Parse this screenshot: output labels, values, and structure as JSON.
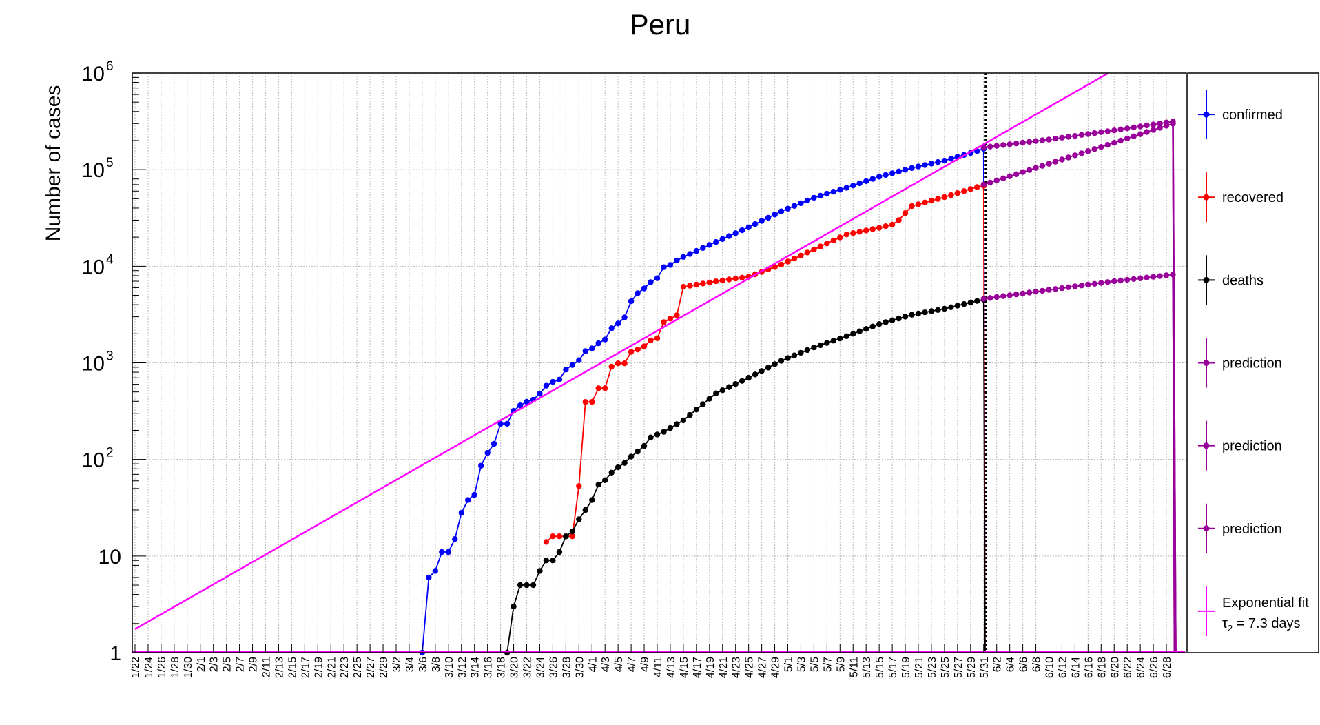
{
  "chart_data": {
    "type": "line",
    "title": "Peru",
    "xlabel": "",
    "ylabel": "Number of cases",
    "y_scale": "log",
    "ylim": [
      1,
      1000000
    ],
    "y_ticks": [
      {
        "value": 1,
        "base": "1",
        "exp": ""
      },
      {
        "value": 10,
        "base": "10",
        "exp": ""
      },
      {
        "value": 100,
        "base": "10",
        "exp": "2"
      },
      {
        "value": 1000,
        "base": "10",
        "exp": "3"
      },
      {
        "value": 10000,
        "base": "10",
        "exp": "4"
      },
      {
        "value": 100000,
        "base": "10",
        "exp": "5"
      },
      {
        "value": 1000000,
        "base": "10",
        "exp": "6"
      }
    ],
    "x_start": "1/22",
    "x_end": "6/30",
    "x_tick_labels": [
      "1/22",
      "1/24",
      "1/26",
      "1/28",
      "1/30",
      "2/1",
      "2/3",
      "2/5",
      "2/7",
      "2/9",
      "2/11",
      "2/13",
      "2/15",
      "2/17",
      "2/19",
      "2/21",
      "2/23",
      "2/25",
      "2/27",
      "2/29",
      "3/2",
      "3/4",
      "3/6",
      "3/8",
      "3/10",
      "3/12",
      "3/14",
      "3/16",
      "3/18",
      "3/20",
      "3/22",
      "3/24",
      "3/26",
      "3/28",
      "3/30",
      "4/1",
      "4/3",
      "4/5",
      "4/7",
      "4/9",
      "4/11",
      "4/13",
      "4/15",
      "4/17",
      "4/19",
      "4/21",
      "4/23",
      "4/25",
      "4/27",
      "4/29",
      "5/1",
      "5/3",
      "5/5",
      "5/7",
      "5/9",
      "5/11",
      "5/13",
      "5/15",
      "5/17",
      "5/19",
      "5/21",
      "5/23",
      "5/25",
      "5/27",
      "5/29",
      "5/31",
      "6/2",
      "6/4",
      "6/6",
      "6/8",
      "6/10",
      "6/12",
      "6/14",
      "6/16",
      "6/18",
      "6/20",
      "6/22",
      "6/24",
      "6/26",
      "6/28"
    ],
    "grid": true,
    "vertical_marker": "5/31",
    "legend_position": "right",
    "series": [
      {
        "name": "confirmed",
        "color": "#0000ff",
        "anchors": [
          [
            "3/6",
            1
          ],
          [
            "3/7",
            6
          ],
          [
            "3/8",
            7
          ],
          [
            "3/9",
            11
          ],
          [
            "3/10",
            11
          ],
          [
            "3/11",
            15
          ],
          [
            "3/12",
            28
          ],
          [
            "3/13",
            38
          ],
          [
            "3/14",
            43
          ],
          [
            "3/15",
            86
          ],
          [
            "3/16",
            117
          ],
          [
            "3/17",
            145
          ],
          [
            "3/18",
            234
          ],
          [
            "3/19",
            234
          ],
          [
            "3/20",
            318
          ],
          [
            "3/21",
            363
          ],
          [
            "3/22",
            395
          ],
          [
            "3/23",
            416
          ],
          [
            "3/24",
            480
          ],
          [
            "3/25",
            580
          ],
          [
            "3/26",
            635
          ],
          [
            "3/27",
            671
          ],
          [
            "3/28",
            852
          ],
          [
            "3/29",
            950
          ],
          [
            "3/30",
            1065
          ],
          [
            "3/31",
            1323
          ],
          [
            "4/1",
            1414
          ],
          [
            "4/2",
            1595
          ],
          [
            "4/3",
            1746
          ],
          [
            "4/4",
            2281
          ],
          [
            "4/5",
            2561
          ],
          [
            "4/6",
            2954
          ],
          [
            "4/7",
            4342
          ],
          [
            "4/8",
            5256
          ],
          [
            "4/9",
            5897
          ],
          [
            "4/10",
            6848
          ],
          [
            "4/11",
            7519
          ],
          [
            "4/12",
            9784
          ],
          [
            "4/13",
            10303
          ],
          [
            "4/14",
            11475
          ],
          [
            "4/15",
            12491
          ],
          [
            "4/20",
            17837
          ],
          [
            "4/25",
            25331
          ],
          [
            "4/30",
            36976
          ],
          [
            "5/5",
            51189
          ],
          [
            "5/10",
            65015
          ],
          [
            "5/15",
            84495
          ],
          [
            "5/20",
            104020
          ],
          [
            "5/25",
            123979
          ],
          [
            "5/30",
            155671
          ],
          [
            "5/31",
            164476
          ]
        ]
      },
      {
        "name": "recovered",
        "color": "#ff0000",
        "anchors": [
          [
            "3/25",
            14
          ],
          [
            "3/26",
            16
          ],
          [
            "3/27",
            16
          ],
          [
            "3/28",
            16
          ],
          [
            "3/29",
            16
          ],
          [
            "3/30",
            53
          ],
          [
            "3/31",
            394
          ],
          [
            "4/1",
            394
          ],
          [
            "4/2",
            546
          ],
          [
            "4/3",
            546
          ],
          [
            "4/4",
            914
          ],
          [
            "4/5",
            989
          ],
          [
            "4/6",
            989
          ],
          [
            "4/7",
            1301
          ],
          [
            "4/8",
            1372
          ],
          [
            "4/9",
            1481
          ],
          [
            "4/10",
            1707
          ],
          [
            "4/11",
            1798
          ],
          [
            "4/12",
            2642
          ],
          [
            "4/13",
            2869
          ],
          [
            "4/14",
            3108
          ],
          [
            "4/15",
            6120
          ],
          [
            "4/20",
            6982
          ],
          [
            "4/25",
            7797
          ],
          [
            "4/30",
            10405
          ],
          [
            "5/5",
            14921
          ],
          [
            "5/10",
            21349
          ],
          [
            "5/15",
            25000
          ],
          [
            "5/17",
            27000
          ],
          [
            "5/18",
            30000
          ],
          [
            "5/20",
            42000
          ],
          [
            "5/25",
            52000
          ],
          [
            "5/30",
            66000
          ],
          [
            "5/31",
            68000
          ]
        ]
      },
      {
        "name": "deaths",
        "color": "#000000",
        "anchors": [
          [
            "3/19",
            1
          ],
          [
            "3/20",
            3
          ],
          [
            "3/21",
            5
          ],
          [
            "3/22",
            5
          ],
          [
            "3/23",
            5
          ],
          [
            "3/24",
            7
          ],
          [
            "3/25",
            9
          ],
          [
            "3/26",
            9
          ],
          [
            "3/27",
            11
          ],
          [
            "3/28",
            16
          ],
          [
            "3/29",
            18
          ],
          [
            "3/30",
            24
          ],
          [
            "3/31",
            30
          ],
          [
            "4/1",
            38
          ],
          [
            "4/2",
            55
          ],
          [
            "4/3",
            61
          ],
          [
            "4/4",
            73
          ],
          [
            "4/5",
            83
          ],
          [
            "4/6",
            92
          ],
          [
            "4/7",
            107
          ],
          [
            "4/8",
            121
          ],
          [
            "4/9",
            138
          ],
          [
            "4/10",
            169
          ],
          [
            "4/11",
            181
          ],
          [
            "4/12",
            193
          ],
          [
            "4/15",
            254
          ],
          [
            "4/20",
            484
          ],
          [
            "4/25",
            700
          ],
          [
            "4/30",
            1051
          ],
          [
            "5/5",
            1444
          ],
          [
            "5/10",
            1889
          ],
          [
            "5/15",
            2523
          ],
          [
            "5/20",
            3148
          ],
          [
            "5/25",
            3629
          ],
          [
            "5/30",
            4371
          ],
          [
            "5/31",
            4506
          ]
        ]
      },
      {
        "name": "prediction",
        "color": "#990099",
        "anchors": [
          [
            "5/31",
            170000
          ],
          [
            "6/10",
            205000
          ],
          [
            "6/20",
            255000
          ],
          [
            "6/29",
            315000
          ]
        ]
      },
      {
        "name": "prediction",
        "color": "#990099",
        "anchors": [
          [
            "5/31",
            70000
          ],
          [
            "6/10",
            115000
          ],
          [
            "6/20",
            190000
          ],
          [
            "6/29",
            300000
          ]
        ]
      },
      {
        "name": "prediction",
        "color": "#990099",
        "anchors": [
          [
            "5/31",
            4600
          ],
          [
            "6/10",
            5700
          ],
          [
            "6/20",
            7000
          ],
          [
            "6/29",
            8200
          ]
        ]
      },
      {
        "name": "Exponential fit",
        "subname": "τ",
        "subname_sub": "2",
        "subname_rest": " = 7.3 days",
        "color": "#ff00ff",
        "fit_points": [
          [
            "1/22",
            1.75
          ],
          [
            "6/1",
            200000
          ]
        ]
      }
    ]
  },
  "colors": {
    "confirmed": "#0000ff",
    "recovered": "#ff0000",
    "deaths": "#000000",
    "prediction": "#990099",
    "fit": "#ff00ff",
    "grid": "#bbbbbb"
  }
}
